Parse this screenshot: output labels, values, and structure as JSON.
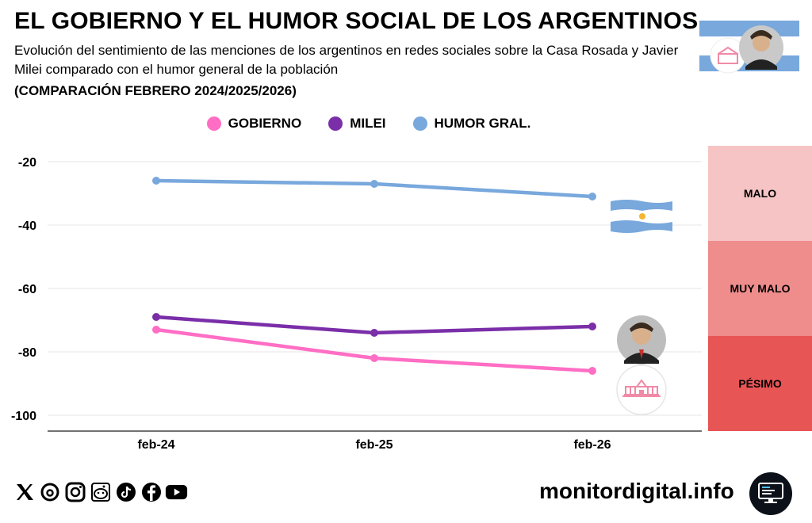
{
  "header": {
    "title": "EL GOBIERNO Y EL HUMOR SOCIAL DE LOS ARGENTINOS",
    "subtitle": "Evolución del sentimiento de las menciones de los argentinos en redes sociales sobre la Casa Rosada y Javier Milei comparado con el humor general de la población",
    "subtitle_bold": "(COMPARACIÓN FEBRERO 2024/2025/2026)"
  },
  "legend": [
    {
      "label": "GOBIERNO",
      "color": "#ff6ec4"
    },
    {
      "label": "MILEI",
      "color": "#7a2ea8"
    },
    {
      "label": "HUMOR GRAL.",
      "color": "#78a8dc"
    }
  ],
  "zones": [
    {
      "label": "MALO",
      "from": -15,
      "to": -45,
      "color": "#f6c4c4"
    },
    {
      "label": "MUY MALO",
      "from": -45,
      "to": -75,
      "color": "#ef8c8c"
    },
    {
      "label": "PÉSIMO",
      "from": -75,
      "to": -105,
      "color": "#e85555"
    }
  ],
  "chart_data": {
    "type": "line",
    "title": "EL GOBIERNO Y EL HUMOR SOCIAL DE LOS ARGENTINOS",
    "categories": [
      "feb-24",
      "feb-25",
      "feb-26"
    ],
    "series": [
      {
        "name": "GOBIERNO",
        "color": "#ff6ec4",
        "values": [
          -73,
          -82,
          -86
        ]
      },
      {
        "name": "MILEI",
        "color": "#7a2ea8",
        "values": [
          -69,
          -74,
          -72
        ]
      },
      {
        "name": "HUMOR GRAL.",
        "color": "#78a8dc",
        "values": [
          -26,
          -27,
          -31
        ]
      }
    ],
    "yticks": [
      -20,
      -40,
      -60,
      -80,
      -100
    ],
    "ylim": [
      -105,
      -15
    ],
    "xlabel": "",
    "ylabel": "",
    "grid": true
  },
  "footer": {
    "site": "monitordigital.info",
    "social_icons": [
      "x-icon",
      "threads-icon",
      "instagram-icon",
      "reddit-icon",
      "tiktok-icon",
      "facebook-icon",
      "youtube-icon"
    ]
  }
}
